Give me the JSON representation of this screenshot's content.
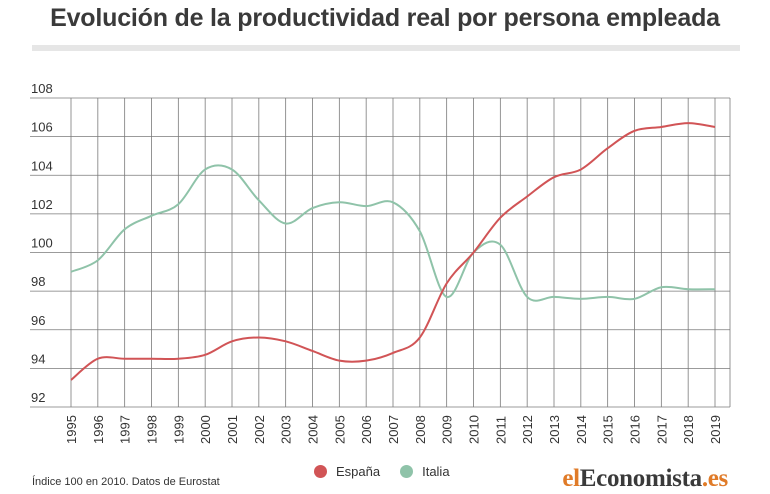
{
  "title": "Evolución de la productividad real por persona empleada",
  "note": "Índice 100 en 2010. Datos de Eurostat",
  "brand": {
    "part1": "el",
    "part2": "Economista",
    "part3": ".es"
  },
  "colors": {
    "espana": "#d15456",
    "italia": "#8fc3a9",
    "grid": "#7a7a7a",
    "axis": "#555555"
  },
  "chart_data": {
    "type": "line",
    "title": "Evolución de la productividad real por persona empleada",
    "x": [
      "1995",
      "1996",
      "1997",
      "1998",
      "1999",
      "2000",
      "2001",
      "2002",
      "2003",
      "2004",
      "2005",
      "2006",
      "2007",
      "2008",
      "2009",
      "2010",
      "2011",
      "2012",
      "2013",
      "2014",
      "2015",
      "2016",
      "2017",
      "2018",
      "2019"
    ],
    "ylim": [
      92,
      108
    ],
    "yticks": [
      "92",
      "94",
      "96",
      "98",
      "100",
      "102",
      "104",
      "106",
      "108"
    ],
    "grid": true,
    "legend": "bottom-center",
    "series": [
      {
        "name": "España",
        "values": [
          93.4,
          94.5,
          94.5,
          94.5,
          94.5,
          94.7,
          95.4,
          95.6,
          95.4,
          94.9,
          94.4,
          94.4,
          94.8,
          95.6,
          98.4,
          100.0,
          101.8,
          102.9,
          103.9,
          104.3,
          105.4,
          106.3,
          106.5,
          106.7,
          106.5
        ]
      },
      {
        "name": "Italia",
        "values": [
          99.0,
          99.6,
          101.2,
          101.9,
          102.5,
          104.3,
          104.3,
          102.7,
          101.5,
          102.3,
          102.6,
          102.4,
          102.6,
          101.1,
          97.7,
          100.0,
          100.4,
          97.7,
          97.7,
          97.6,
          97.7,
          97.6,
          98.2,
          98.1,
          98.1
        ]
      }
    ]
  }
}
